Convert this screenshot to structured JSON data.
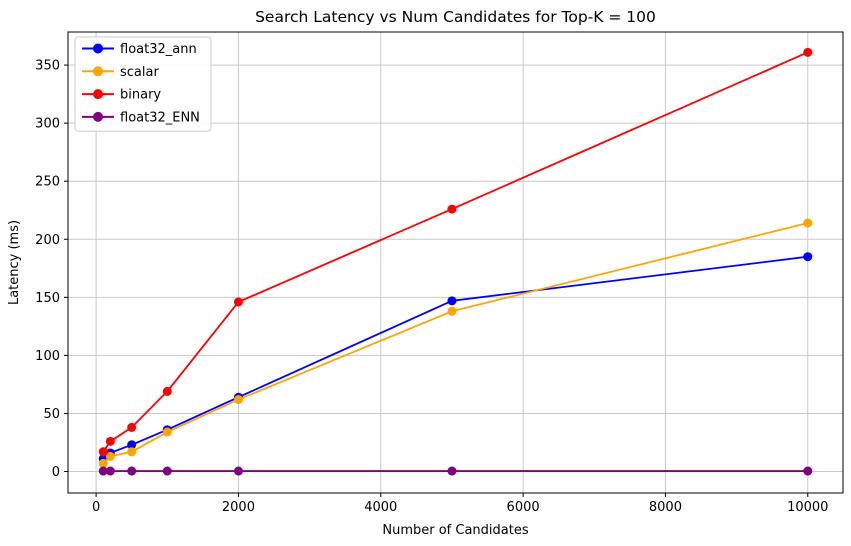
{
  "chart_data": {
    "type": "line",
    "title": "Search Latency vs Num Candidates for Top-K = 100",
    "xlabel": "Number of Candidates",
    "ylabel": "Latency (ms)",
    "x": [
      100,
      200,
      500,
      1000,
      2000,
      5000,
      10000
    ],
    "series": [
      {
        "name": "float32_ann",
        "color": "#0000ff",
        "values": [
          11,
          16,
          23,
          36,
          64,
          147,
          185
        ]
      },
      {
        "name": "scalar",
        "color": "#ffa500",
        "values": [
          7,
          13,
          17,
          34,
          62,
          138,
          214
        ]
      },
      {
        "name": "binary",
        "color": "#ff0000",
        "values": [
          17,
          26,
          38,
          69,
          146,
          226,
          361
        ]
      },
      {
        "name": "float32_ENN",
        "color": "#800080",
        "values": [
          0.4,
          0.4,
          0.4,
          0.4,
          0.4,
          0.4,
          0.4
        ]
      }
    ],
    "xticks": [
      0,
      2000,
      4000,
      6000,
      8000,
      10000
    ],
    "yticks": [
      0,
      50,
      100,
      150,
      200,
      250,
      300,
      350
    ],
    "xtick_labels": [
      "0",
      "2000",
      "4000",
      "6000",
      "8000",
      "10000"
    ],
    "ytick_labels": [
      "0",
      "50",
      "100",
      "150",
      "200",
      "250",
      "300",
      "350"
    ],
    "xlim": [
      -395,
      10495
    ],
    "ylim": [
      -18.5,
      378.5
    ],
    "grid": true,
    "grid_color": "#c9c9c9",
    "spine_color": "#000000",
    "background": "#ffffff",
    "legend_position": "upper-left",
    "legend_entries": [
      "float32_ann",
      "scalar",
      "binary",
      "float32_ENN"
    ],
    "marker": "circle",
    "marker_radius": 4.5,
    "line_width": 1.8
  }
}
